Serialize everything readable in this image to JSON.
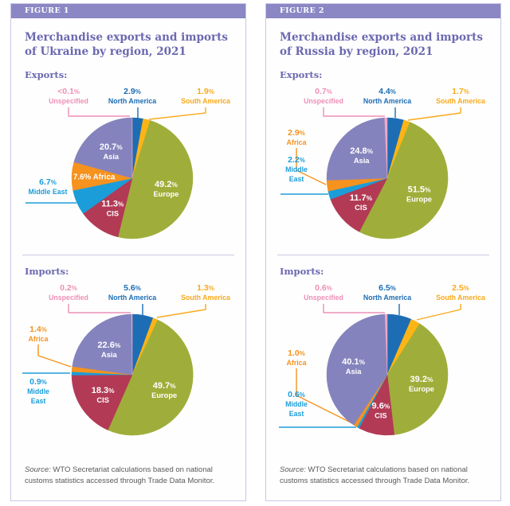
{
  "colors": {
    "North America": "#1d6db4",
    "South America": "#fdb415",
    "Europe": "#9fae3a",
    "CIS": "#b23a55",
    "Middle East": "#1b9dd9",
    "Africa": "#f6921e",
    "Asia": "#8583bd",
    "Unspecified": "#f2a6c4"
  },
  "label_colors": {
    "Unspecified": "#ee8fb6",
    "South America": "#f9a91b"
  },
  "ui_colors": {
    "figure_bar": "#8a87c4",
    "title_text": "#6b68b0",
    "card_border": "#c9c7e4",
    "source_text": "#58595b"
  },
  "figures": [
    {
      "tag": "FIGURE 1",
      "title_lines": [
        "Merchandise exports and imports",
        "of Ukraine by region, 2021"
      ],
      "source_prefix": "Source:",
      "source_text": " WTO Secretariat calculations based on national customs statistics accessed through Trade Data Monitor."
    },
    {
      "tag": "FIGURE 2",
      "title_lines": [
        "Merchandise exports and imports",
        "of Russia by region, 2021"
      ],
      "source_prefix": "Source:",
      "source_text": " WTO Secretariat calculations based on national customs statistics accessed through Trade Data Monitor."
    }
  ],
  "chart_data": [
    {
      "type": "pie",
      "figure": "FIGURE 1",
      "title": "Merchandise exports and imports of Ukraine by region, 2021",
      "subtitle": "Exports:",
      "units": "%",
      "order": "clockwise from 12 o'clock",
      "categories": [
        "North America",
        "South America",
        "Europe",
        "CIS",
        "Middle East",
        "Africa",
        "Asia",
        "Unspecified"
      ],
      "values": [
        2.9,
        1.9,
        49.2,
        11.3,
        6.7,
        7.6,
        20.7,
        0.05
      ],
      "value_labels": [
        "2.9%",
        "1.9%",
        "49.2%",
        "11.3%",
        "6.7%",
        "7.6%",
        "20.7%",
        "<0.1%"
      ]
    },
    {
      "type": "pie",
      "figure": "FIGURE 1",
      "title": "Merchandise exports and imports of Ukraine by region, 2021",
      "subtitle": "Imports:",
      "units": "%",
      "order": "clockwise from 12 o'clock",
      "categories": [
        "North America",
        "South America",
        "Europe",
        "CIS",
        "Middle East",
        "Africa",
        "Asia",
        "Unspecified"
      ],
      "values": [
        5.6,
        1.3,
        49.7,
        18.3,
        0.9,
        1.4,
        22.6,
        0.2
      ],
      "value_labels": [
        "5.6%",
        "1.3%",
        "49.7%",
        "18.3%",
        "0.9%",
        "1.4%",
        "22.6%",
        "0.2%"
      ]
    },
    {
      "type": "pie",
      "figure": "FIGURE 2",
      "title": "Merchandise exports and imports of Russia by region, 2021",
      "subtitle": "Exports:",
      "units": "%",
      "order": "clockwise from 12 o'clock",
      "categories": [
        "North America",
        "South America",
        "Europe",
        "CIS",
        "Middle East",
        "Africa",
        "Asia",
        "Unspecified"
      ],
      "values": [
        4.4,
        1.7,
        51.5,
        11.7,
        2.2,
        2.9,
        24.8,
        0.7
      ],
      "value_labels": [
        "4.4%",
        "1.7%",
        "51.5%",
        "11.7%",
        "2.2%",
        "2.9%",
        "24.8%",
        "0.7%"
      ]
    },
    {
      "type": "pie",
      "figure": "FIGURE 2",
      "title": "Merchandise exports and imports of Russia by region, 2021",
      "subtitle": "Imports:",
      "units": "%",
      "order": "clockwise from 12 o'clock",
      "categories": [
        "North America",
        "South America",
        "Europe",
        "CIS",
        "Middle East",
        "Africa",
        "Asia",
        "Unspecified"
      ],
      "values": [
        6.5,
        2.5,
        39.2,
        9.6,
        0.6,
        1.0,
        40.1,
        0.6
      ],
      "value_labels": [
        "6.5%",
        "2.5%",
        "39.2%",
        "9.6%",
        "0.6%",
        "1.0%",
        "40.1%",
        "0.6%"
      ]
    }
  ]
}
